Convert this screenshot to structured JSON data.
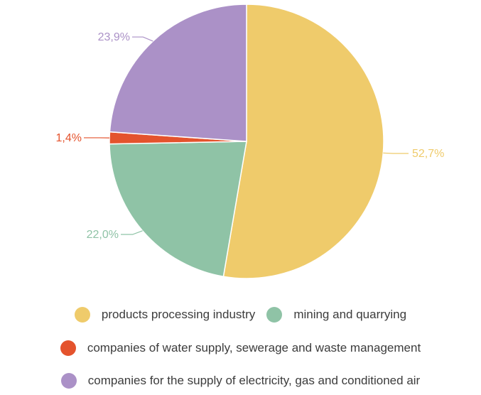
{
  "chart_data": {
    "type": "pie",
    "title": "",
    "slices": [
      {
        "label": "products processing industry",
        "value": 52.7,
        "value_label": "52,7%",
        "color": "#EFCB6B"
      },
      {
        "label": "mining and quarrying",
        "value": 22.0,
        "value_label": "22,0%",
        "color": "#8FC3A6"
      },
      {
        "label": "companies of water supply, sewerage and waste management",
        "value": 1.4,
        "value_label": "1,4%",
        "color": "#E4532D"
      },
      {
        "label": "companies for the supply of electricity, gas and conditioned air",
        "value": 23.9,
        "value_label": "23,9%",
        "color": "#AB91C7"
      }
    ],
    "start_angle": "12 o'clock",
    "direction": "clockwise",
    "legend_position": "bottom"
  }
}
